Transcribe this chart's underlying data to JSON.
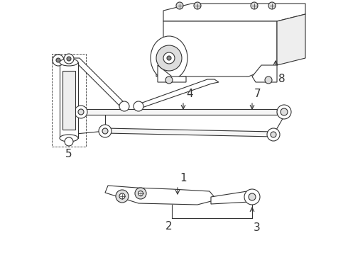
{
  "bg_color": "#ffffff",
  "line_color": "#333333",
  "label_fontsize": 11
}
